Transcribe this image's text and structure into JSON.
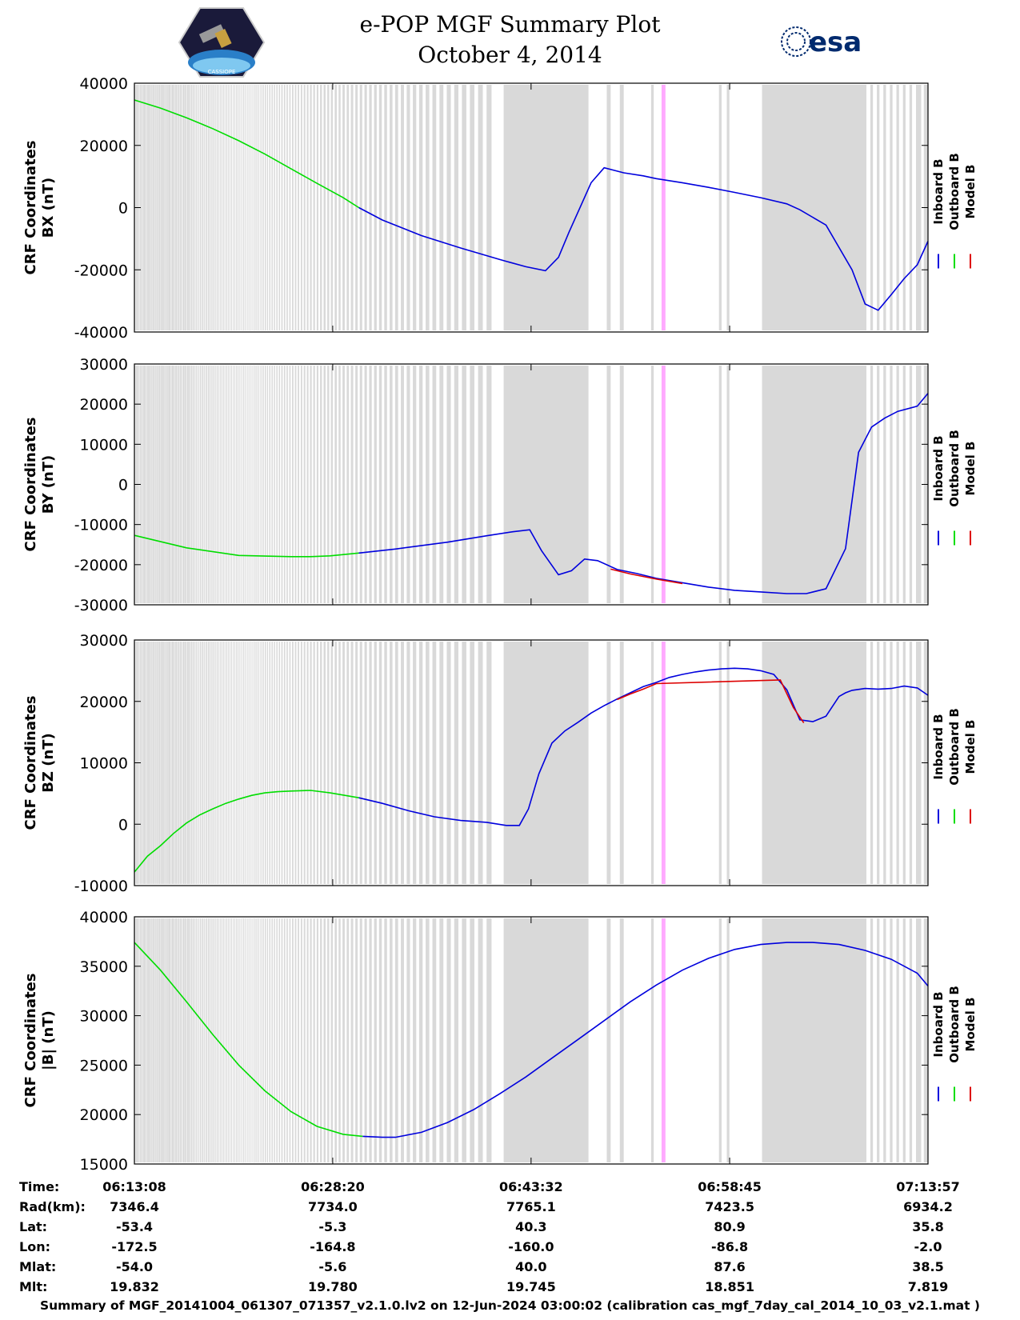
{
  "header": {
    "title_line1": "e-POP MGF Summary Plot",
    "title_line2": "October 4, 2014",
    "left_logo_text": "CASSIOPE",
    "right_logo_text": "esa"
  },
  "colors": {
    "inboard": "#0000dd",
    "outboard": "#00dd00",
    "model": "#dd0000",
    "gray_band": "#d9d9d9",
    "pink_band": "#ffaaff"
  },
  "legend": [
    "Inboard B",
    "Outboard B",
    "Model B"
  ],
  "chart_data": [
    {
      "type": "line",
      "ylabel_line1": "CRF Coordinates",
      "ylabel_line2": "BX (nT)",
      "ylim": [
        -40000,
        40000
      ],
      "yticks": [
        "-40000",
        "-20000",
        "0",
        "20000",
        "40000"
      ],
      "yticks_values": [
        -40000,
        -20000,
        0,
        20000,
        40000
      ],
      "xlim_minutes": [
        0,
        60.82
      ],
      "series": [
        {
          "name": "Outboard B",
          "x": [
            0,
            2,
            4,
            6,
            8,
            10,
            12,
            14,
            16,
            17.2
          ],
          "y": [
            34600,
            32000,
            28900,
            25400,
            21500,
            17200,
            12500,
            7800,
            3200,
            0
          ]
        },
        {
          "name": "Inboard B",
          "x": [
            17.2,
            19,
            22,
            25,
            28,
            30,
            31.5,
            32.5,
            33.3,
            35,
            36,
            37.5,
            39,
            40,
            42,
            44,
            46,
            48,
            50,
            51,
            53,
            55,
            56,
            57,
            58,
            59,
            60,
            60.82
          ],
          "y": [
            0,
            -4000,
            -9000,
            -13000,
            -16700,
            -19000,
            -20300,
            -16000,
            -8000,
            8000,
            12800,
            11200,
            10200,
            9300,
            8000,
            6500,
            4900,
            3200,
            1200,
            -700,
            -5600,
            -20000,
            -31000,
            -33000,
            -28000,
            -22800,
            -18400,
            -10800
          ]
        }
      ]
    },
    {
      "type": "line",
      "ylabel_line1": "CRF Coordinates",
      "ylabel_line2": "BY (nT)",
      "ylim": [
        -30000,
        30000
      ],
      "yticks": [
        "-30000",
        "-20000",
        "-10000",
        "0",
        "10000",
        "20000",
        "30000"
      ],
      "yticks_values": [
        -30000,
        -20000,
        -10000,
        0,
        10000,
        20000,
        30000
      ],
      "xlim_minutes": [
        0,
        60.82
      ],
      "series": [
        {
          "name": "Outboard B",
          "x": [
            0,
            4,
            8,
            12,
            13.5,
            15,
            17.2
          ],
          "y": [
            -12700,
            -15800,
            -17700,
            -18000,
            -18000,
            -17800,
            -17100
          ]
        },
        {
          "name": "Inboard B",
          "x": [
            17.2,
            20,
            24,
            27,
            29,
            30.3,
            31.2,
            32.5,
            33.5,
            34.5,
            35.5,
            37,
            38.5,
            40,
            42,
            44,
            46,
            48,
            50,
            51.5,
            53,
            54.5,
            55.5,
            56.5,
            57.5,
            58.5,
            60,
            60.82
          ],
          "y": [
            -17100,
            -16100,
            -14400,
            -12800,
            -11800,
            -11300,
            -16500,
            -22500,
            -21500,
            -18600,
            -19000,
            -21200,
            -22200,
            -23400,
            -24500,
            -25600,
            -26400,
            -26800,
            -27200,
            -27200,
            -26000,
            -16000,
            8000,
            14300,
            16500,
            18200,
            19500,
            22700
          ]
        },
        {
          "name": "Model B",
          "x": [
            36.5,
            38,
            40,
            42
          ],
          "y": [
            -21100,
            -22300,
            -23600,
            -24700
          ]
        }
      ]
    },
    {
      "type": "line",
      "ylabel_line1": "CRF Coordinates",
      "ylabel_line2": "BZ (nT)",
      "ylim": [
        -10000,
        30000
      ],
      "yticks": [
        "-10000",
        "0",
        "10000",
        "20000",
        "30000"
      ],
      "yticks_values": [
        -10000,
        0,
        10000,
        20000,
        30000
      ],
      "xlim_minutes": [
        0,
        60.82
      ],
      "series": [
        {
          "name": "Outboard B",
          "x": [
            0,
            1,
            2,
            3,
            4,
            5,
            6,
            7,
            8,
            9,
            10,
            11,
            12,
            13.5,
            15,
            17.2
          ],
          "y": [
            -7800,
            -5200,
            -3500,
            -1500,
            200,
            1500,
            2500,
            3400,
            4100,
            4700,
            5100,
            5300,
            5400,
            5500,
            5100,
            4300
          ]
        },
        {
          "name": "Inboard B",
          "x": [
            17.2,
            19,
            21,
            23,
            25,
            27,
            28.5,
            29.5,
            30.2,
            31,
            32,
            33,
            34,
            35,
            36,
            37,
            38,
            39,
            40,
            41,
            42,
            43,
            44,
            45,
            46,
            47,
            48,
            49,
            50,
            51,
            52,
            53,
            54,
            54.5,
            55,
            56,
            57,
            58,
            59,
            60,
            60.82
          ],
          "y": [
            4300,
            3400,
            2200,
            1200,
            600,
            300,
            -200,
            -200,
            2500,
            8200,
            13200,
            15200,
            16600,
            18100,
            19300,
            20400,
            21400,
            22400,
            23100,
            23900,
            24400,
            24800,
            25100,
            25300,
            25400,
            25300,
            25000,
            24400,
            21900,
            17000,
            16700,
            17600,
            20800,
            21400,
            21800,
            22100,
            22000,
            22100,
            22500,
            22200,
            21000
          ]
        },
        {
          "name": "Model B",
          "x": [
            37,
            38,
            39,
            40,
            49.5,
            50.5,
            51.3
          ],
          "y": [
            20300,
            21200,
            22000,
            22900,
            23500,
            19000,
            16500
          ]
        }
      ]
    },
    {
      "type": "line",
      "ylabel_line1": "CRF Coordinates",
      "ylabel_line2": "|B| (nT)",
      "ylim": [
        15000,
        40000
      ],
      "yticks": [
        "15000",
        "20000",
        "25000",
        "30000",
        "35000",
        "40000"
      ],
      "yticks_values": [
        15000,
        20000,
        25000,
        30000,
        35000,
        40000
      ],
      "xlim_minutes": [
        0,
        60.82
      ],
      "series": [
        {
          "name": "Outboard B",
          "x": [
            0,
            2,
            4,
            6,
            8,
            10,
            12,
            14,
            16,
            17.5
          ],
          "y": [
            37400,
            34600,
            31400,
            28100,
            25000,
            22400,
            20300,
            18800,
            18000,
            17800
          ]
        },
        {
          "name": "Inboard B",
          "x": [
            17.5,
            19,
            20,
            22,
            24,
            26,
            28,
            30,
            32,
            34,
            36,
            38,
            40,
            42,
            44,
            46,
            48,
            50,
            52,
            54,
            56,
            58,
            60,
            60.82
          ],
          "y": [
            17800,
            17700,
            17700,
            18200,
            19200,
            20500,
            22100,
            23800,
            25700,
            27600,
            29500,
            31400,
            33100,
            34600,
            35800,
            36700,
            37200,
            37400,
            37400,
            37200,
            36600,
            35700,
            34300,
            33000
          ]
        }
      ]
    }
  ],
  "bands": {
    "gray": [
      [
        0.02,
        0.05
      ],
      [
        0.12,
        0.16
      ],
      [
        0.19,
        0.23
      ],
      [
        0.26,
        0.31
      ],
      [
        0.34,
        0.4
      ],
      [
        0.44,
        0.47
      ],
      [
        0.5,
        0.56
      ],
      [
        0.59,
        0.63
      ],
      [
        0.66,
        0.7
      ],
      [
        0.73,
        0.77
      ],
      [
        0.8,
        0.87
      ],
      [
        0.9,
        0.94
      ],
      [
        0.97,
        1.02
      ],
      [
        1.05,
        1.08
      ],
      [
        1.11,
        1.21
      ],
      [
        1.24,
        1.28
      ],
      [
        1.31,
        1.36
      ],
      [
        1.39,
        1.43
      ],
      [
        1.46,
        1.53
      ],
      [
        1.56,
        1.6
      ],
      [
        1.63,
        1.7
      ],
      [
        1.73,
        1.77
      ],
      [
        1.8,
        1.85
      ],
      [
        1.88,
        2.0
      ],
      [
        2.03,
        2.07
      ],
      [
        2.1,
        2.13
      ],
      [
        2.16,
        2.26
      ],
      [
        2.29,
        2.32
      ],
      [
        2.35,
        2.42
      ],
      [
        2.45,
        2.5
      ],
      [
        2.53,
        2.56
      ],
      [
        2.6,
        2.63
      ],
      [
        2.66,
        2.77
      ],
      [
        2.8,
        2.85
      ],
      [
        2.88,
        2.92
      ],
      [
        2.95,
        3.05
      ],
      [
        3.09,
        3.13
      ],
      [
        3.16,
        3.19
      ],
      [
        3.22,
        3.28
      ],
      [
        3.32,
        3.36
      ],
      [
        3.39,
        3.45
      ],
      [
        3.48,
        3.52
      ],
      [
        3.55,
        3.62
      ],
      [
        3.66,
        3.7
      ],
      [
        3.74,
        3.78
      ],
      [
        3.82,
        3.84
      ],
      [
        3.88,
        3.92
      ],
      [
        3.95,
        4.0
      ],
      [
        4.05,
        4.07
      ],
      [
        4.1,
        4.14
      ],
      [
        4.18,
        4.22
      ],
      [
        4.26,
        4.3
      ],
      [
        4.35,
        4.4
      ],
      [
        4.45,
        4.56
      ],
      [
        4.61,
        4.66
      ],
      [
        4.71,
        4.76
      ],
      [
        4.81,
        4.86
      ],
      [
        4.92,
        4.97
      ],
      [
        5.03,
        5.08
      ],
      [
        5.13,
        5.17
      ],
      [
        5.22,
        5.27
      ],
      [
        5.32,
        5.37
      ],
      [
        5.43,
        5.47
      ],
      [
        5.52,
        5.58
      ],
      [
        5.63,
        5.72
      ],
      [
        5.76,
        5.82
      ],
      [
        5.87,
        5.92
      ],
      [
        5.97,
        6.02
      ],
      [
        6.07,
        6.12
      ],
      [
        6.18,
        6.23
      ],
      [
        6.3,
        6.39
      ],
      [
        6.45,
        6.5
      ],
      [
        6.57,
        6.62
      ],
      [
        6.68,
        6.74
      ],
      [
        6.8,
        6.85
      ],
      [
        6.91,
        6.97
      ],
      [
        7.04,
        7.12
      ],
      [
        7.18,
        7.23
      ],
      [
        7.3,
        7.36
      ],
      [
        7.42,
        7.48
      ],
      [
        7.55,
        7.6
      ],
      [
        7.67,
        7.73
      ],
      [
        7.8,
        7.88
      ],
      [
        7.94,
        8.0
      ],
      [
        8.06,
        8.12
      ],
      [
        8.2,
        8.27
      ],
      [
        8.34,
        8.41
      ],
      [
        8.47,
        8.53
      ],
      [
        8.61,
        8.68
      ],
      [
        8.75,
        8.82
      ],
      [
        8.9,
        8.97
      ],
      [
        9.05,
        9.12
      ],
      [
        9.2,
        9.28
      ],
      [
        9.35,
        9.43
      ],
      [
        9.5,
        9.57
      ],
      [
        9.66,
        9.74
      ],
      [
        9.82,
        9.91
      ],
      [
        9.99,
        10.08
      ],
      [
        10.16,
        10.24
      ],
      [
        10.33,
        10.42
      ],
      [
        10.51,
        10.6
      ],
      [
        10.69,
        10.78
      ],
      [
        10.88,
        10.97
      ],
      [
        11.07,
        11.16
      ],
      [
        11.26,
        11.36
      ],
      [
        11.46,
        11.56
      ],
      [
        11.66,
        11.76
      ],
      [
        11.87,
        11.97
      ],
      [
        12.08,
        12.19
      ],
      [
        12.3,
        12.41
      ],
      [
        12.52,
        12.63
      ],
      [
        12.75,
        12.86
      ],
      [
        12.98,
        13.1
      ],
      [
        13.22,
        13.34
      ],
      [
        13.46,
        13.59
      ],
      [
        13.71,
        13.84
      ],
      [
        13.97,
        14.1
      ],
      [
        14.23,
        14.37
      ],
      [
        14.5,
        14.65
      ],
      [
        14.78,
        14.93
      ],
      [
        15.06,
        15.21
      ],
      [
        15.35,
        15.51
      ],
      [
        15.65,
        15.8
      ],
      [
        15.95,
        16.12
      ],
      [
        16.27,
        16.44
      ],
      [
        16.59,
        16.77
      ],
      [
        16.93,
        17.11
      ],
      [
        17.27,
        17.46
      ],
      [
        17.63,
        17.82
      ],
      [
        17.99,
        18.19
      ],
      [
        18.37,
        18.57
      ],
      [
        18.75,
        18.96
      ],
      [
        19.15,
        19.36
      ],
      [
        19.56,
        19.78
      ],
      [
        19.98,
        20.21
      ],
      [
        20.42,
        20.66
      ],
      [
        20.87,
        21.12
      ],
      [
        21.34,
        21.6
      ],
      [
        21.82,
        22.09
      ],
      [
        22.32,
        22.6
      ],
      [
        22.84,
        23.13
      ],
      [
        23.38,
        23.68
      ],
      [
        23.94,
        24.25
      ],
      [
        24.51,
        24.83
      ],
      [
        25.1,
        25.44
      ],
      [
        25.71,
        26.06
      ],
      [
        26.34,
        26.7
      ],
      [
        26.99,
        27.37
      ],
      [
        28.3,
        34.8
      ],
      [
        36.2,
        36.5
      ],
      [
        37.2,
        37.5
      ],
      [
        39.6,
        39.8
      ],
      [
        44.8,
        45.0
      ],
      [
        45.4,
        45.6
      ],
      [
        48.1,
        56.1
      ],
      [
        56.4,
        56.6
      ],
      [
        56.9,
        57.1
      ],
      [
        57.4,
        57.6
      ],
      [
        57.9,
        58.1
      ],
      [
        58.4,
        58.6
      ],
      [
        58.9,
        59.1
      ],
      [
        59.4,
        59.6
      ],
      [
        59.9,
        60.3
      ],
      [
        60.5,
        60.82
      ]
    ],
    "pink": [
      [
        40.4,
        40.7
      ]
    ]
  },
  "footer": {
    "labels": [
      "Time:",
      "Rad(km):",
      "Lat:",
      "Lon:",
      "Mlat:",
      "Mlt:"
    ],
    "columns": [
      {
        "values": [
          "06:13:08",
          "7346.4",
          "-53.4",
          "-172.5",
          "-54.0",
          "19.832"
        ]
      },
      {
        "values": [
          "06:28:20",
          "7734.0",
          "-5.3",
          "-164.8",
          "-5.6",
          "19.780"
        ]
      },
      {
        "values": [
          "06:43:32",
          "7765.1",
          "40.3",
          "-160.0",
          "40.0",
          "19.745"
        ]
      },
      {
        "values": [
          "06:58:45",
          "7423.5",
          "80.9",
          "-86.8",
          "87.6",
          "18.851"
        ]
      },
      {
        "values": [
          "07:13:57",
          "6934.2",
          "35.8",
          "-2.0",
          "38.5",
          "7.819"
        ]
      }
    ],
    "xtick_minutes": [
      0,
      15.2,
      30.4,
      45.62,
      60.82
    ],
    "summary": "Summary of MGF_20141004_061307_071357_v2.1.0.lv2 on 12-Jun-2024 03:00:02 (calibration cas_mgf_7day_cal_2014_10_03_v2.1.mat )"
  }
}
